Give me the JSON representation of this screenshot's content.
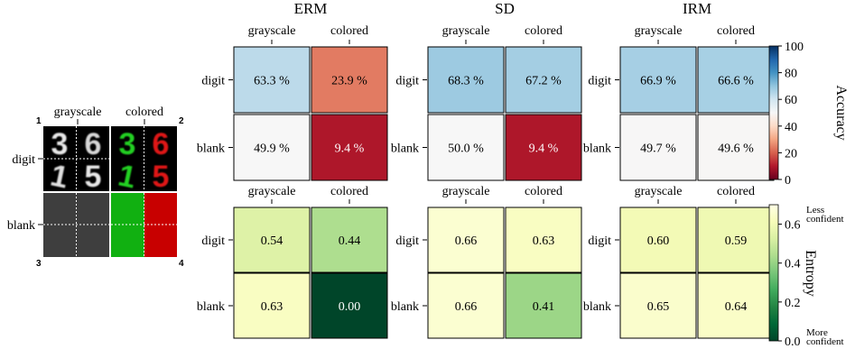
{
  "chart_data": {
    "type": "heatmap",
    "legend": {
      "quadrant_numbers": [
        "1",
        "2",
        "3",
        "4"
      ],
      "col_labels": [
        "grayscale",
        "colored"
      ],
      "row_labels": [
        "digit",
        "blank"
      ],
      "digit_images": {
        "grayscale": [
          "3",
          "6",
          "1",
          "5"
        ],
        "colored": [
          {
            "char": "3",
            "color": "#20d020"
          },
          {
            "char": "6",
            "color": "#e01818"
          },
          {
            "char": "1",
            "color": "#20d020"
          },
          {
            "char": "5",
            "color": "#e01818"
          }
        ]
      },
      "blank_colors": {
        "grayscale": "#3e3e3e",
        "colored_left": "#11b011",
        "colored_right": "#c80000"
      }
    },
    "panels": [
      {
        "title": "ERM",
        "col_labels": [
          "grayscale",
          "colored"
        ],
        "row_labels": [
          "digit",
          "blank"
        ],
        "accuracy": [
          [
            63.3,
            23.9
          ],
          [
            49.9,
            9.4
          ]
        ],
        "accuracy_labels": [
          [
            "63.3 %",
            "23.9 %"
          ],
          [
            "49.9 %",
            "9.4 %"
          ]
        ],
        "entropy": [
          [
            0.54,
            0.44
          ],
          [
            0.63,
            0.0
          ]
        ],
        "entropy_labels": [
          [
            "0.54",
            "0.44"
          ],
          [
            "0.63",
            "0.00"
          ]
        ]
      },
      {
        "title": "SD",
        "col_labels": [
          "grayscale",
          "colored"
        ],
        "row_labels": [
          "digit",
          "blank"
        ],
        "accuracy": [
          [
            68.3,
            67.2
          ],
          [
            50.0,
            9.4
          ]
        ],
        "accuracy_labels": [
          [
            "68.3 %",
            "67.2 %"
          ],
          [
            "50.0 %",
            "9.4 %"
          ]
        ],
        "entropy": [
          [
            0.66,
            0.63
          ],
          [
            0.66,
            0.41
          ]
        ],
        "entropy_labels": [
          [
            "0.66",
            "0.63"
          ],
          [
            "0.66",
            "0.41"
          ]
        ]
      },
      {
        "title": "IRM",
        "col_labels": [
          "grayscale",
          "colored"
        ],
        "row_labels": [
          "digit",
          "blank"
        ],
        "accuracy": [
          [
            66.9,
            66.6
          ],
          [
            49.7,
            49.6
          ]
        ],
        "accuracy_labels": [
          [
            "66.9 %",
            "66.6 %"
          ],
          [
            "49.7 %",
            "49.6 %"
          ]
        ],
        "entropy": [
          [
            0.6,
            0.59
          ],
          [
            0.65,
            0.64
          ]
        ],
        "entropy_labels": [
          [
            "0.60",
            "0.59"
          ],
          [
            "0.65",
            "0.64"
          ]
        ]
      }
    ],
    "colorbars": {
      "accuracy": {
        "label": "Accuracy",
        "range": [
          0,
          100
        ],
        "ticks": [
          0,
          20,
          40,
          60,
          80,
          100
        ],
        "tick_labels": [
          "0",
          "20",
          "40",
          "60",
          "80",
          "100"
        ],
        "colormap": "RdBu"
      },
      "entropy": {
        "label": "Entropy",
        "range": [
          0,
          0.7
        ],
        "ticks": [
          0,
          0.2,
          0.4,
          0.6
        ],
        "tick_labels": [
          "0.0",
          "0.2",
          "0.4",
          "0.6"
        ],
        "colormap": "YlGn (reversed)",
        "top_note": [
          "Less",
          "confident"
        ],
        "bottom_note": [
          "More",
          "confident"
        ]
      }
    }
  }
}
